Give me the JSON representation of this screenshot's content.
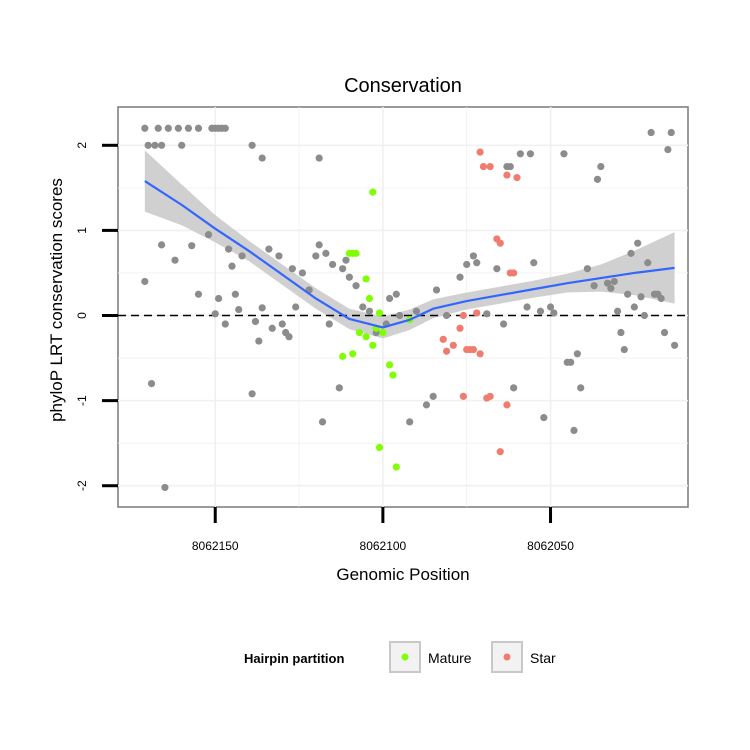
{
  "chart_data": {
    "type": "scatter",
    "title": "Conservation",
    "xlabel": "Genomic Position",
    "ylabel": "phyloP LRT conservation scores",
    "xlim": [
      8062179,
      8062009
    ],
    "ylim": [
      -2.25,
      2.45
    ],
    "x_ticks": [
      8062150,
      8062100,
      8062050
    ],
    "x_tick_labels": [
      "8062150",
      "8062100",
      "8062050"
    ],
    "y_ticks": [
      -2,
      -1,
      0,
      1,
      2
    ],
    "y_tick_labels": [
      "-2",
      "-1",
      "0",
      "1",
      "2"
    ],
    "reference_line": {
      "y": 0,
      "style": "dashed"
    },
    "colors": {
      "other": "#8c8c8c",
      "Mature": "#7fff00",
      "Star": "#f07c70",
      "smooth": "#3366ff",
      "band": "#c8c8c8"
    },
    "legend": {
      "title": "Hairpin partition",
      "position": "bottom",
      "entries": [
        {
          "label": "Mature",
          "color": "#7fff00"
        },
        {
          "label": "Star",
          "color": "#f07c70"
        }
      ]
    },
    "series": [
      {
        "name": "Other",
        "in_legend": false,
        "points": [
          [
            8062171,
            2.2
          ],
          [
            8062167,
            2.2
          ],
          [
            8062164,
            2.2
          ],
          [
            8062161,
            2.2
          ],
          [
            8062158,
            2.2
          ],
          [
            8062155,
            2.2
          ],
          [
            8062151,
            2.2
          ],
          [
            8062150,
            2.2
          ],
          [
            8062149,
            2.2
          ],
          [
            8062148,
            2.2
          ],
          [
            8062147,
            2.2
          ],
          [
            8062170,
            2.0
          ],
          [
            8062168,
            2.0
          ],
          [
            8062166,
            2.0
          ],
          [
            8062160,
            2.0
          ],
          [
            8062139,
            2.0
          ],
          [
            8062136,
            1.85
          ],
          [
            8062119,
            1.85
          ],
          [
            8062171,
            0.4
          ],
          [
            8062169,
            -0.8
          ],
          [
            8062166,
            0.83
          ],
          [
            8062162,
            0.65
          ],
          [
            8062157,
            0.82
          ],
          [
            8062155,
            0.25
          ],
          [
            8062152,
            0.95
          ],
          [
            8062150,
            0.02
          ],
          [
            8062147,
            -0.1
          ],
          [
            8062146,
            0.78
          ],
          [
            8062145,
            0.58
          ],
          [
            8062144,
            0.25
          ],
          [
            8062143,
            0.07
          ],
          [
            8062142,
            0.7
          ],
          [
            8062139,
            -0.92
          ],
          [
            8062138,
            -0.07
          ],
          [
            8062136,
            0.09
          ],
          [
            8062134,
            0.78
          ],
          [
            8062133,
            -0.15
          ],
          [
            8062131,
            0.7
          ],
          [
            8062130,
            -0.1
          ],
          [
            8062129,
            -0.2
          ],
          [
            8062128,
            -0.25
          ],
          [
            8062127,
            0.55
          ],
          [
            8062126,
            0.1
          ],
          [
            8062124,
            0.5
          ],
          [
            8062122,
            0.3
          ],
          [
            8062120,
            0.7
          ],
          [
            8062119,
            0.83
          ],
          [
            8062118,
            -1.25
          ],
          [
            8062117,
            0.73
          ],
          [
            8062116,
            -0.1
          ],
          [
            8062115,
            0.6
          ],
          [
            8062113,
            -0.85
          ],
          [
            8062112,
            0.55
          ],
          [
            8062111,
            0.65
          ],
          [
            8062110,
            0.45
          ],
          [
            8062108,
            0.35
          ],
          [
            8062106,
            0.1
          ],
          [
            8062104,
            0.05
          ],
          [
            8062102,
            -0.2
          ],
          [
            8062099,
            -0.1
          ],
          [
            8062098,
            0.2
          ],
          [
            8062096,
            0.25
          ],
          [
            8062095,
            0.0
          ],
          [
            8062092,
            -1.25
          ],
          [
            8062090,
            0.05
          ],
          [
            8062087,
            -1.05
          ],
          [
            8062085,
            -0.95
          ],
          [
            8062084,
            0.3
          ],
          [
            8062081,
            0.0
          ],
          [
            8062077,
            0.45
          ],
          [
            8062075,
            0.6
          ],
          [
            8062073,
            0.7
          ],
          [
            8062072,
            0.62
          ],
          [
            8062069,
            0.02
          ],
          [
            8062066,
            0.55
          ],
          [
            8062064,
            -0.1
          ],
          [
            8062063,
            1.75
          ],
          [
            8062062,
            1.75
          ],
          [
            8062061,
            -0.85
          ],
          [
            8062059,
            1.9
          ],
          [
            8062057,
            0.1
          ],
          [
            8062056,
            1.9
          ],
          [
            8062055,
            0.62
          ],
          [
            8062053,
            0.05
          ],
          [
            8062052,
            -1.2
          ],
          [
            8062050,
            0.1
          ],
          [
            8062049,
            0.03
          ],
          [
            8062046,
            1.9
          ],
          [
            8062045,
            -0.55
          ],
          [
            8062044,
            -0.55
          ],
          [
            8062043,
            -1.35
          ],
          [
            8062042,
            -0.45
          ],
          [
            8062041,
            -0.85
          ],
          [
            8062039,
            0.55
          ],
          [
            8062037,
            0.35
          ],
          [
            8062036,
            1.6
          ],
          [
            8062035,
            1.75
          ],
          [
            8062033,
            0.38
          ],
          [
            8062032,
            0.32
          ],
          [
            8062031,
            0.4
          ],
          [
            8062030,
            0.05
          ],
          [
            8062029,
            -0.2
          ],
          [
            8062028,
            -0.4
          ],
          [
            8062027,
            0.25
          ],
          [
            8062026,
            0.73
          ],
          [
            8062025,
            0.1
          ],
          [
            8062024,
            0.85
          ],
          [
            8062023,
            0.22
          ],
          [
            8062022,
            0.0
          ],
          [
            8062021,
            0.62
          ],
          [
            8062020,
            2.15
          ],
          [
            8062019,
            0.25
          ],
          [
            8062018,
            0.25
          ],
          [
            8062017,
            0.2
          ],
          [
            8062016,
            -0.2
          ],
          [
            8062015,
            1.95
          ],
          [
            8062014,
            2.15
          ],
          [
            8062013,
            -0.35
          ],
          [
            8062165,
            -2.02
          ],
          [
            8062149,
            0.2
          ],
          [
            8062137,
            -0.3
          ]
        ]
      },
      {
        "name": "Mature",
        "in_legend": true,
        "points": [
          [
            8062103,
            1.45
          ],
          [
            8062110,
            0.73
          ],
          [
            8062109,
            0.73
          ],
          [
            8062108,
            0.73
          ],
          [
            8062105,
            0.43
          ],
          [
            8062104,
            0.2
          ],
          [
            8062101,
            0.03
          ],
          [
            8062107,
            -0.2
          ],
          [
            8062102,
            -0.15
          ],
          [
            8062100,
            -0.2
          ],
          [
            8062103,
            -0.35
          ],
          [
            8062105,
            -0.25
          ],
          [
            8062109,
            -0.45
          ],
          [
            8062112,
            -0.48
          ],
          [
            8062098,
            -0.58
          ],
          [
            8062097,
            -0.7
          ],
          [
            8062101,
            -1.55
          ],
          [
            8062096,
            -1.78
          ],
          [
            8062092,
            -0.05
          ]
        ]
      },
      {
        "name": "Star",
        "in_legend": true,
        "points": [
          [
            8062071,
            1.92
          ],
          [
            8062070,
            1.75
          ],
          [
            8062068,
            1.75
          ],
          [
            8062063,
            1.65
          ],
          [
            8062060,
            1.62
          ],
          [
            8062065,
            0.85
          ],
          [
            8062066,
            0.9
          ],
          [
            8062062,
            0.5
          ],
          [
            8062061,
            0.5
          ],
          [
            8062072,
            0.03
          ],
          [
            8062076,
            0.0
          ],
          [
            8062077,
            -0.15
          ],
          [
            8062079,
            -0.35
          ],
          [
            8062075,
            -0.4
          ],
          [
            8062073,
            -0.4
          ],
          [
            8062074,
            -0.4
          ],
          [
            8062071,
            -0.45
          ],
          [
            8062081,
            -0.42
          ],
          [
            8062076,
            -0.95
          ],
          [
            8062068,
            -0.95
          ],
          [
            8062069,
            -0.97
          ],
          [
            8062063,
            -1.05
          ],
          [
            8062065,
            -1.6
          ],
          [
            8062082,
            -0.28
          ]
        ]
      }
    ],
    "smooth": {
      "points": [
        [
          8062171,
          1.58
        ],
        [
          8062160,
          1.3
        ],
        [
          8062150,
          1.02
        ],
        [
          8062140,
          0.76
        ],
        [
          8062130,
          0.48
        ],
        [
          8062120,
          0.2
        ],
        [
          8062110,
          -0.04
        ],
        [
          8062100,
          -0.14
        ],
        [
          8062092,
          -0.05
        ],
        [
          8062085,
          0.08
        ],
        [
          8062075,
          0.17
        ],
        [
          8062065,
          0.24
        ],
        [
          8062055,
          0.31
        ],
        [
          8062045,
          0.38
        ],
        [
          8062035,
          0.44
        ],
        [
          8062025,
          0.5
        ],
        [
          8062013,
          0.56
        ]
      ],
      "band_halfwidth": [
        0.36,
        0.24,
        0.16,
        0.12,
        0.12,
        0.12,
        0.12,
        0.13,
        0.12,
        0.11,
        0.1,
        0.1,
        0.1,
        0.11,
        0.16,
        0.26,
        0.42
      ]
    }
  }
}
